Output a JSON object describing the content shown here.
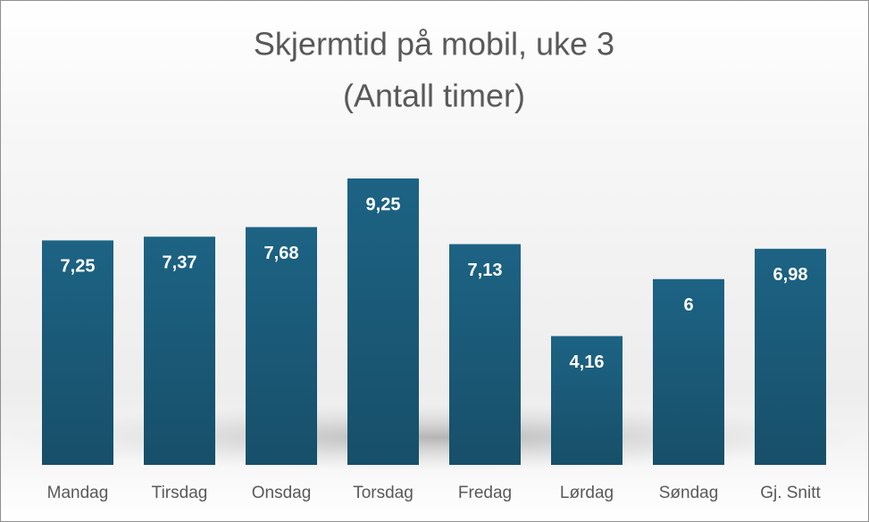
{
  "chart_data": {
    "type": "bar",
    "title": "Skjermtid på mobil, uke 3",
    "subtitle": "(Antall timer)",
    "categories": [
      "Mandag",
      "Tirsdag",
      "Onsdag",
      "Torsdag",
      "Fredag",
      "Lørdag",
      "Søndag",
      "Gj. Snitt"
    ],
    "values": [
      7.25,
      7.37,
      7.68,
      9.25,
      7.13,
      4.16,
      6,
      6.98
    ],
    "value_labels": [
      "7,25",
      "7,37",
      "7,68",
      "9,25",
      "7,13",
      "4,16",
      "6",
      "6,98"
    ],
    "color": "#1b5e7e"
  }
}
